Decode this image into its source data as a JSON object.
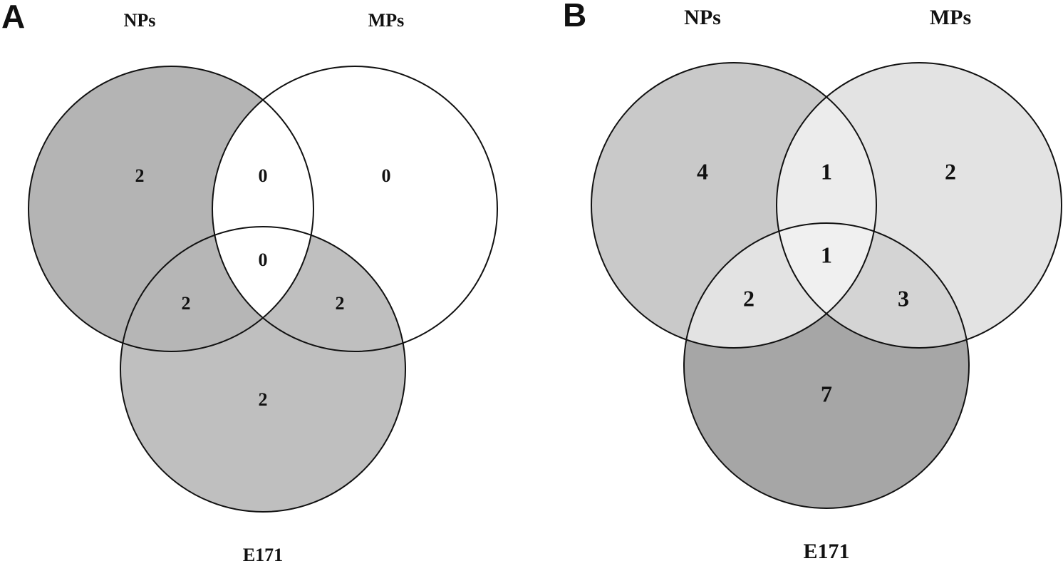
{
  "panels": [
    {
      "label": "A",
      "sets": [
        "NPs",
        "MPs",
        "E171"
      ],
      "regions": {
        "nps_only": 2,
        "mps_only": 0,
        "e171_only": 2,
        "nps_mps": 0,
        "nps_e171": 2,
        "mps_e171": 2,
        "all": 0
      }
    },
    {
      "label": "B",
      "sets": [
        "NPs",
        "MPs",
        "E171"
      ],
      "regions": {
        "nps_only": 4,
        "mps_only": 2,
        "e171_only": 7,
        "nps_mps": 1,
        "nps_e171": 2,
        "mps_e171": 3,
        "all": 1
      }
    }
  ]
}
